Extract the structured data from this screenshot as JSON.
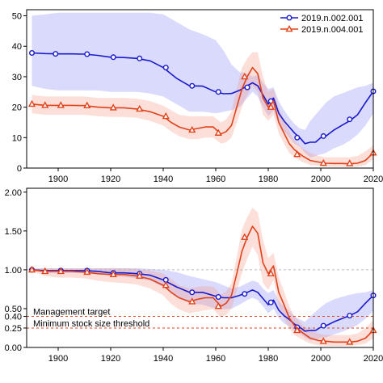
{
  "chart_data": [
    {
      "type": "line",
      "title": "",
      "xlabel": "",
      "ylabel": "",
      "xlim": [
        1888,
        2020
      ],
      "ylim": [
        0,
        52
      ],
      "x_ticks": [
        "1900",
        "1920",
        "1940",
        "1960",
        "1980",
        "2000",
        "2020"
      ],
      "x_tick_values": [
        1900,
        1920,
        1940,
        1960,
        1980,
        2000,
        2020
      ],
      "y_ticks": [
        "0",
        "10",
        "20",
        "30",
        "40",
        "50"
      ],
      "y_tick_values": [
        0,
        10,
        20,
        30,
        40,
        50
      ],
      "grid": false,
      "legend_position": "top-right",
      "series": [
        {
          "name": "2019.n.002.001",
          "color": "#1a1acc",
          "marker": "circle",
          "x": [
            1890,
            1895,
            1900,
            1905,
            1910,
            1915,
            1920,
            1925,
            1930,
            1935,
            1940,
            1945,
            1950,
            1955,
            1960,
            1963,
            1966,
            1969,
            1972,
            1974,
            1976,
            1978,
            1980,
            1982,
            1984,
            1986,
            1988,
            1990,
            1992,
            1994,
            1996,
            1998,
            2000,
            2002,
            2005,
            2008,
            2011,
            2014,
            2017,
            2020
          ],
          "y": [
            37.8,
            37.6,
            37.5,
            37.5,
            37.4,
            37.0,
            36.4,
            36.3,
            36.0,
            35.2,
            33.0,
            29.5,
            27.0,
            26.9,
            25.0,
            24.4,
            24.5,
            25.5,
            27.0,
            28.0,
            27.0,
            24.0,
            21.0,
            23.0,
            18.0,
            15.5,
            13.5,
            11.5,
            10.0,
            8.0,
            8.5,
            8.5,
            10.0,
            10.5,
            12.5,
            14.0,
            15.5,
            17.5,
            21.5,
            25.2
          ],
          "band_upper": [
            50.0,
            50.5,
            51.0,
            51.0,
            51.0,
            51.0,
            51.0,
            51.0,
            51.0,
            51.0,
            50.5,
            48.0,
            45.5,
            44.0,
            42.0,
            38.5,
            34.0,
            31.5,
            31.0,
            30.0,
            30.5,
            28.0,
            26.0,
            26.5,
            22.0,
            19.0,
            16.5,
            14.5,
            13.0,
            12.5,
            15.5,
            17.5,
            19.5,
            21.5,
            23.5,
            24.5,
            25.5,
            26.5,
            27.0,
            28.0
          ],
          "band_lower": [
            27.0,
            26.0,
            25.5,
            25.5,
            25.5,
            25.5,
            25.0,
            25.0,
            25.0,
            24.5,
            23.5,
            21.0,
            18.5,
            18.5,
            18.0,
            18.5,
            19.0,
            20.0,
            23.0,
            25.0,
            23.5,
            20.0,
            17.0,
            19.0,
            14.5,
            12.0,
            10.0,
            8.0,
            7.0,
            5.0,
            3.5,
            4.0,
            4.5,
            5.0,
            6.5,
            7.5,
            9.0,
            11.0,
            14.0,
            18.0
          ],
          "markers_x": [
            1890,
            1899,
            1911,
            1921,
            1931,
            1941,
            1951,
            1961,
            1972,
            1981,
            1991,
            2001,
            2011,
            2020
          ],
          "markers_y": [
            37.8,
            37.5,
            37.4,
            36.4,
            36.0,
            33.0,
            27.0,
            25.0,
            26.5,
            22.0,
            10.0,
            10.5,
            16.0,
            25.2
          ]
        },
        {
          "name": "2019.n.004.001",
          "color": "#e0421a",
          "marker": "triangle",
          "x": [
            1890,
            1895,
            1900,
            1905,
            1910,
            1915,
            1920,
            1925,
            1930,
            1935,
            1940,
            1943,
            1946,
            1950,
            1953,
            1956,
            1959,
            1962,
            1964,
            1966,
            1968,
            1970,
            1972,
            1974,
            1976,
            1978,
            1980,
            1982,
            1984,
            1986,
            1988,
            1990,
            1993,
            1996,
            1999,
            2002,
            2005,
            2008,
            2011,
            2014,
            2017,
            2020
          ],
          "y": [
            21.0,
            20.6,
            20.6,
            20.6,
            20.5,
            20.0,
            19.8,
            19.8,
            19.4,
            18.5,
            17.0,
            15.0,
            13.5,
            12.5,
            13.0,
            13.5,
            13.5,
            11.2,
            12.0,
            14.0,
            20.0,
            26.0,
            30.0,
            33.0,
            31.0,
            23.0,
            20.0,
            22.0,
            15.0,
            11.5,
            8.0,
            6.0,
            4.0,
            2.5,
            2.0,
            1.6,
            1.5,
            1.5,
            1.4,
            1.6,
            2.5,
            5.0
          ],
          "band_upper": [
            24.0,
            23.5,
            23.5,
            23.5,
            23.5,
            23.0,
            23.0,
            23.0,
            22.8,
            22.0,
            20.5,
            19.0,
            17.5,
            17.0,
            17.0,
            17.0,
            17.0,
            15.0,
            16.0,
            18.5,
            26.0,
            33.0,
            36.0,
            38.0,
            38.0,
            30.0,
            25.0,
            26.0,
            19.5,
            16.0,
            12.0,
            9.0,
            6.5,
            5.0,
            4.0,
            3.5,
            3.5,
            3.5,
            3.5,
            4.0,
            5.5,
            7.5
          ],
          "band_lower": [
            18.0,
            17.5,
            17.5,
            17.5,
            17.5,
            17.0,
            16.8,
            16.8,
            16.5,
            15.5,
            14.0,
            12.0,
            10.5,
            9.5,
            9.5,
            10.0,
            10.0,
            8.0,
            8.5,
            10.0,
            15.0,
            20.0,
            24.0,
            27.0,
            25.0,
            17.5,
            15.5,
            17.5,
            11.5,
            8.0,
            5.0,
            3.5,
            2.0,
            1.0,
            0.8,
            0.5,
            0.4,
            0.4,
            0.4,
            0.5,
            1.0,
            3.0
          ],
          "markers_x": [
            1890,
            1895,
            1901,
            1911,
            1921,
            1931,
            1941,
            1951,
            1961,
            1971,
            1981,
            1991,
            2001,
            2011,
            2020
          ],
          "markers_y": [
            21.0,
            20.6,
            20.6,
            20.5,
            19.8,
            19.4,
            17.0,
            12.5,
            11.5,
            30.0,
            20.0,
            4.5,
            1.6,
            1.5,
            5.0
          ]
        }
      ]
    },
    {
      "type": "line",
      "title": "",
      "xlabel": "",
      "ylabel": "",
      "xlim": [
        1888,
        2020
      ],
      "ylim": [
        0,
        2.05
      ],
      "x_ticks": [
        "1900",
        "1920",
        "1940",
        "1960",
        "1980",
        "2000",
        "2020"
      ],
      "x_tick_values": [
        1900,
        1920,
        1940,
        1960,
        1980,
        2000,
        2020
      ],
      "y_ticks": [
        "0.00",
        "0.25",
        "0.40",
        "0.50",
        "1.00",
        "1.50",
        "2.00"
      ],
      "y_tick_values": [
        0,
        0.25,
        0.4,
        0.5,
        1.0,
        1.5,
        2.0
      ],
      "grid": false,
      "reference_lines": [
        {
          "y": 1.0,
          "label": "",
          "color": "#bbbbbb"
        },
        {
          "y": 0.4,
          "label": "Management target",
          "color": "#e0421a"
        },
        {
          "y": 0.25,
          "label": "Minimum stock size threshold",
          "color": "#e0421a"
        }
      ],
      "series": [
        {
          "name": "2019.n.002.001",
          "color": "#1a1acc",
          "marker": "circle",
          "x": [
            1890,
            1895,
            1900,
            1905,
            1910,
            1915,
            1920,
            1925,
            1930,
            1935,
            1940,
            1945,
            1950,
            1955,
            1960,
            1963,
            1966,
            1969,
            1972,
            1974,
            1976,
            1978,
            1980,
            1982,
            1984,
            1986,
            1988,
            1990,
            1992,
            1994,
            1996,
            1998,
            2000,
            2002,
            2005,
            2008,
            2011,
            2014,
            2017,
            2020
          ],
          "y": [
            1.0,
            0.99,
            0.99,
            0.99,
            0.99,
            0.98,
            0.96,
            0.96,
            0.95,
            0.93,
            0.87,
            0.78,
            0.71,
            0.71,
            0.66,
            0.64,
            0.64,
            0.67,
            0.71,
            0.74,
            0.71,
            0.63,
            0.55,
            0.61,
            0.48,
            0.41,
            0.36,
            0.3,
            0.26,
            0.21,
            0.22,
            0.22,
            0.26,
            0.28,
            0.33,
            0.37,
            0.41,
            0.46,
            0.57,
            0.67
          ],
          "band_upper": [
            1.01,
            1.02,
            1.02,
            1.02,
            1.02,
            1.02,
            1.02,
            1.02,
            1.02,
            1.01,
            1.0,
            0.97,
            0.92,
            0.88,
            0.84,
            0.8,
            0.76,
            0.78,
            0.83,
            0.86,
            0.84,
            0.76,
            0.7,
            0.74,
            0.6,
            0.52,
            0.47,
            0.4,
            0.36,
            0.33,
            0.4,
            0.46,
            0.52,
            0.57,
            0.62,
            0.65,
            0.68,
            0.7,
            0.71,
            0.74
          ],
          "band_lower": [
            0.99,
            0.96,
            0.96,
            0.96,
            0.96,
            0.95,
            0.92,
            0.91,
            0.89,
            0.86,
            0.78,
            0.65,
            0.57,
            0.55,
            0.5,
            0.49,
            0.5,
            0.55,
            0.61,
            0.64,
            0.61,
            0.53,
            0.44,
            0.5,
            0.38,
            0.31,
            0.27,
            0.21,
            0.18,
            0.13,
            0.09,
            0.1,
            0.12,
            0.13,
            0.17,
            0.2,
            0.24,
            0.29,
            0.37,
            0.47
          ],
          "markers_x": [
            1890,
            1901,
            1911,
            1921,
            1931,
            1941,
            1951,
            1961,
            1971,
            1981,
            1991,
            2001,
            2011,
            2020
          ],
          "markers_y": [
            1.0,
            0.99,
            0.99,
            0.96,
            0.95,
            0.87,
            0.71,
            0.65,
            0.69,
            0.58,
            0.26,
            0.28,
            0.41,
            0.67
          ]
        },
        {
          "name": "2019.n.004.001",
          "color": "#e0421a",
          "marker": "triangle",
          "x": [
            1890,
            1895,
            1900,
            1905,
            1910,
            1915,
            1920,
            1925,
            1930,
            1935,
            1940,
            1943,
            1946,
            1950,
            1953,
            1956,
            1959,
            1962,
            1964,
            1966,
            1968,
            1970,
            1972,
            1974,
            1976,
            1978,
            1980,
            1982,
            1984,
            1986,
            1988,
            1990,
            1993,
            1996,
            1999,
            2002,
            2005,
            2008,
            2011,
            2014,
            2017,
            2020
          ],
          "y": [
            1.0,
            0.98,
            0.98,
            0.98,
            0.97,
            0.95,
            0.94,
            0.94,
            0.92,
            0.88,
            0.8,
            0.71,
            0.64,
            0.59,
            0.62,
            0.64,
            0.64,
            0.53,
            0.57,
            0.67,
            0.95,
            1.24,
            1.42,
            1.56,
            1.47,
            1.09,
            0.95,
            1.05,
            0.71,
            0.55,
            0.38,
            0.28,
            0.19,
            0.12,
            0.09,
            0.08,
            0.07,
            0.07,
            0.07,
            0.08,
            0.12,
            0.22
          ],
          "band_upper": [
            1.02,
            1.02,
            1.02,
            1.02,
            1.02,
            1.02,
            1.02,
            1.02,
            1.01,
            0.99,
            0.95,
            0.88,
            0.8,
            0.76,
            0.78,
            0.79,
            0.78,
            0.68,
            0.72,
            0.83,
            1.17,
            1.52,
            1.68,
            1.8,
            1.74,
            1.38,
            1.15,
            1.22,
            0.9,
            0.72,
            0.53,
            0.4,
            0.29,
            0.22,
            0.18,
            0.16,
            0.16,
            0.16,
            0.16,
            0.18,
            0.25,
            0.35
          ],
          "band_lower": [
            0.98,
            0.92,
            0.9,
            0.9,
            0.89,
            0.86,
            0.84,
            0.83,
            0.81,
            0.76,
            0.67,
            0.56,
            0.49,
            0.44,
            0.46,
            0.48,
            0.49,
            0.39,
            0.42,
            0.5,
            0.73,
            0.96,
            1.14,
            1.3,
            1.19,
            0.83,
            0.74,
            0.87,
            0.53,
            0.38,
            0.24,
            0.16,
            0.1,
            0.05,
            0.03,
            0.02,
            0.02,
            0.02,
            0.02,
            0.03,
            0.05,
            0.12
          ],
          "markers_x": [
            1890,
            1895,
            1901,
            1911,
            1921,
            1931,
            1941,
            1951,
            1961,
            1971,
            1981,
            1991,
            2001,
            2011,
            2020
          ],
          "markers_y": [
            1.0,
            0.98,
            0.98,
            0.97,
            0.94,
            0.92,
            0.8,
            0.59,
            0.53,
            1.42,
            0.95,
            0.22,
            0.08,
            0.07,
            0.22
          ]
        }
      ]
    }
  ]
}
